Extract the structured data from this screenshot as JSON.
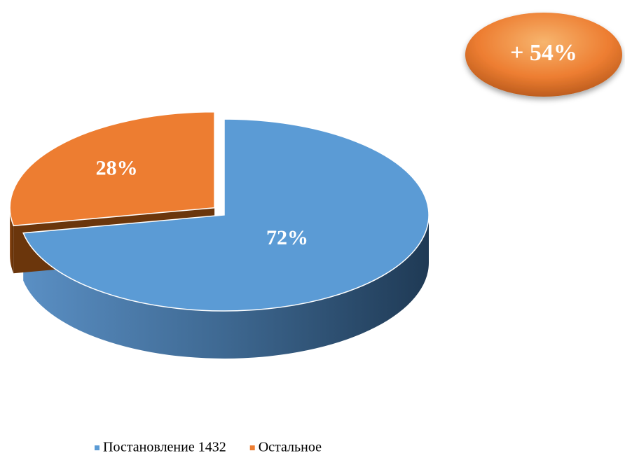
{
  "chart_data": {
    "type": "pie",
    "annotation": "+ 54%",
    "categories": [
      "Постановление 1432",
      "Остальное"
    ],
    "values": [
      72,
      28
    ],
    "value_labels": [
      "72%",
      "28%"
    ],
    "colors": [
      "#5b9bd5",
      "#ed7d31"
    ],
    "legend": "bottom"
  }
}
